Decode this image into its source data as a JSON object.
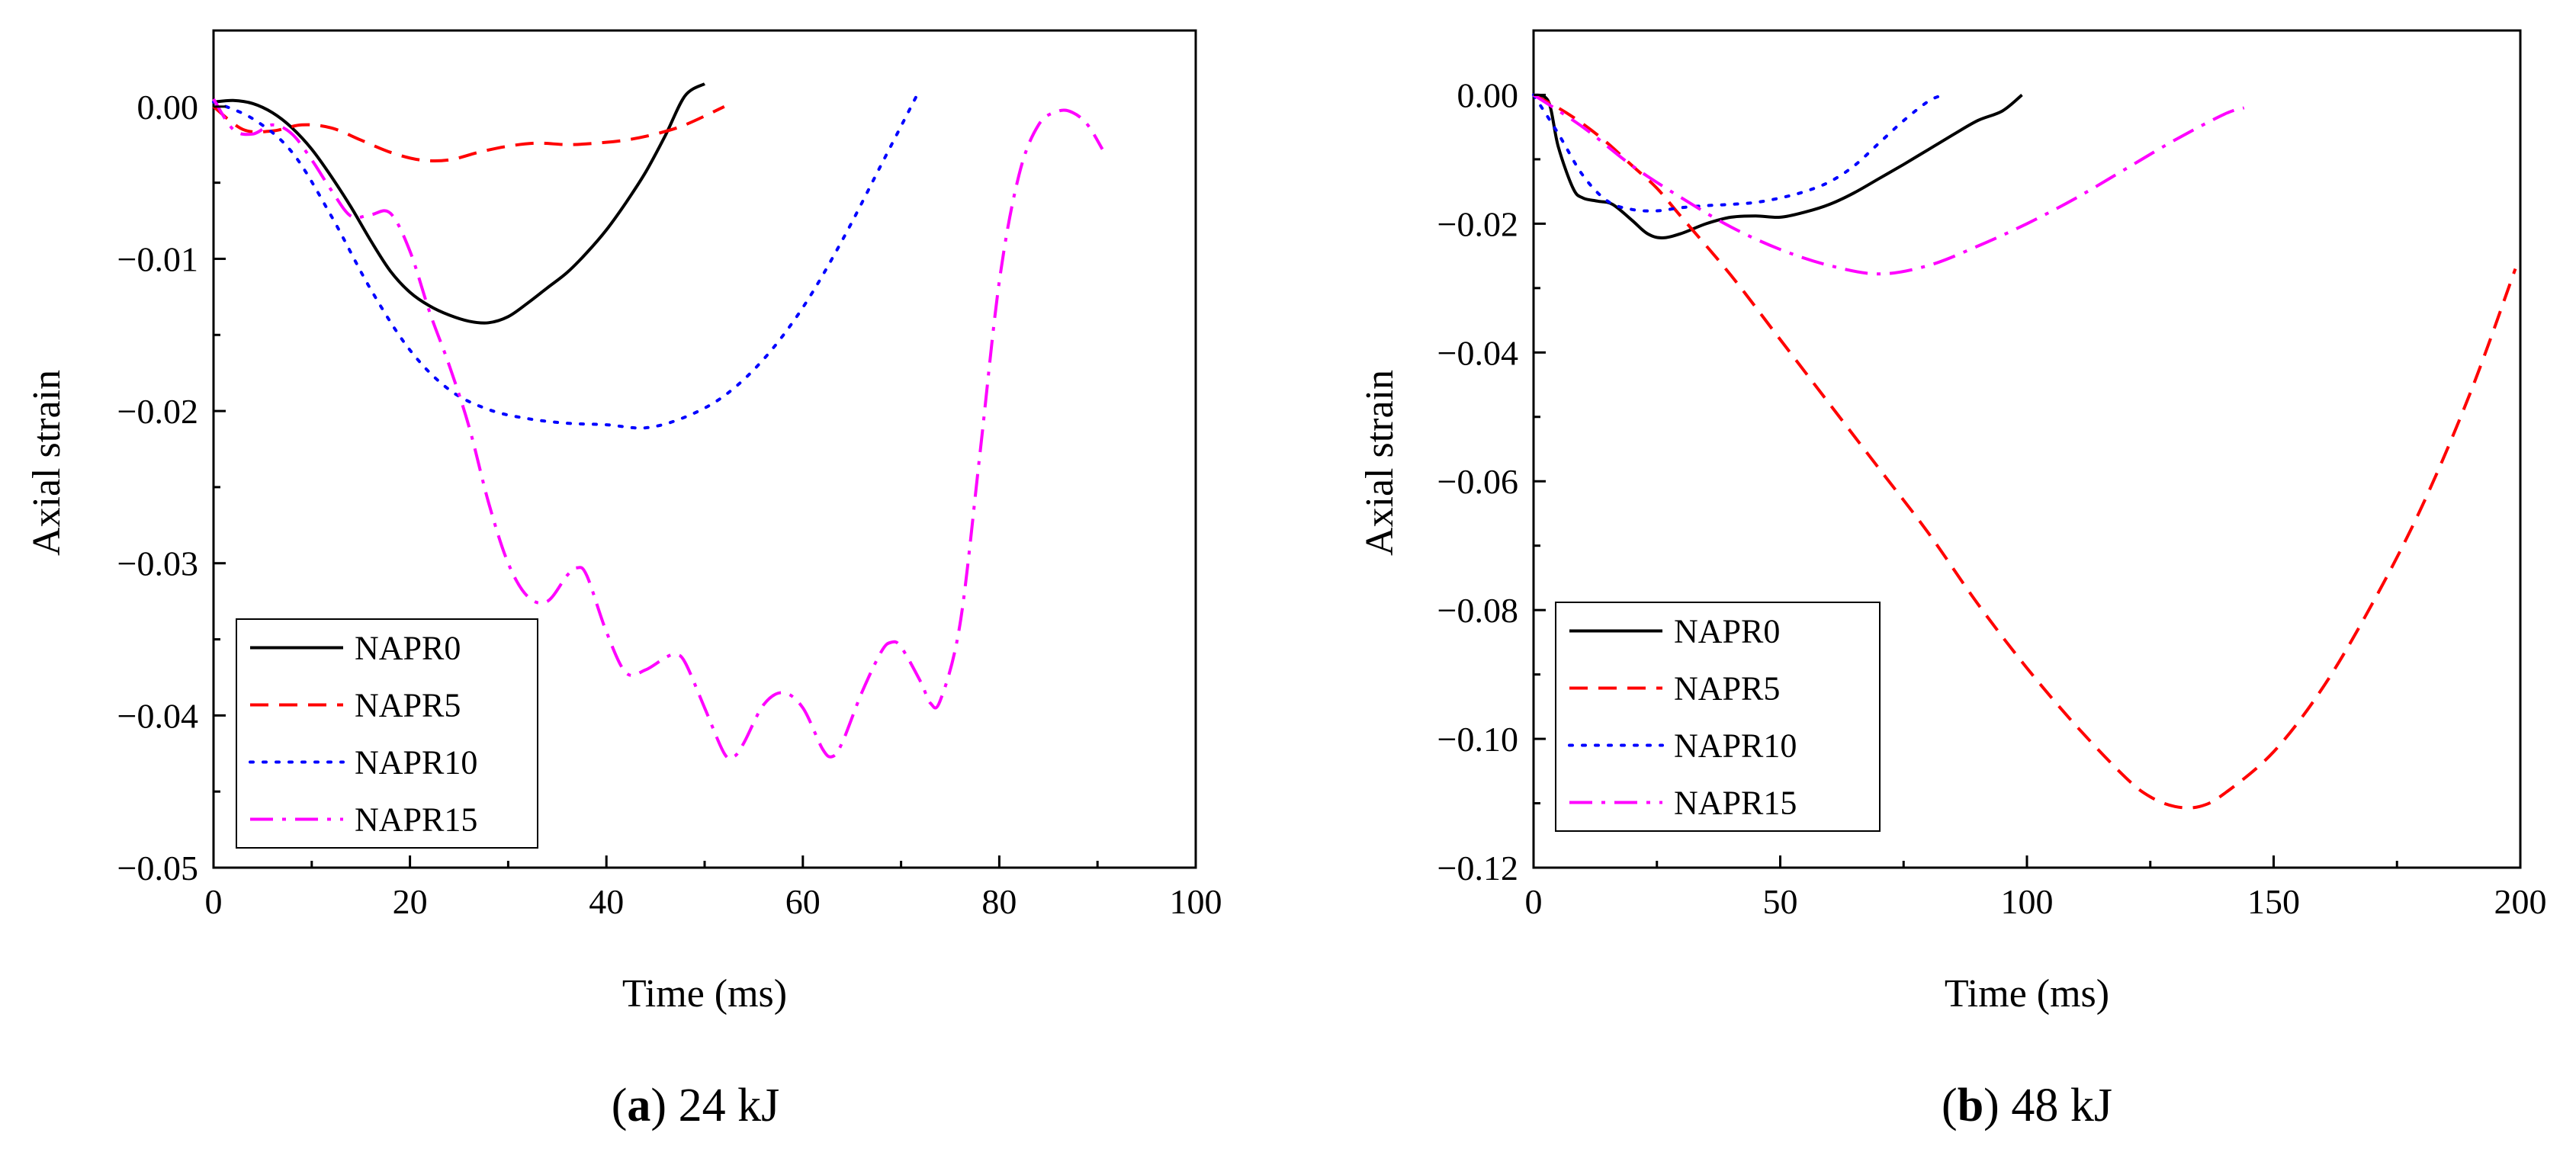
{
  "chart_data": [
    {
      "type": "line",
      "panel": "a",
      "caption": {
        "letter": "a",
        "text": "24 kJ"
      },
      "xlabel": "Time (ms)",
      "ylabel": "Axial strain",
      "xlim": [
        0,
        100
      ],
      "ylim": [
        -0.05,
        0.005
      ],
      "xticks": [
        0,
        20,
        40,
        60,
        80,
        100
      ],
      "xtick_labels": [
        "0",
        "20",
        "40",
        "60",
        "80",
        "100"
      ],
      "yticks": [
        0,
        -0.01,
        -0.02,
        -0.03,
        -0.04,
        -0.05
      ],
      "ytick_labels": [
        "0.00",
        "−0.01",
        "−0.02",
        "−0.03",
        "−0.04",
        "−0.05"
      ],
      "grid": false,
      "legend_position": "bottom-left",
      "series": [
        {
          "name": "NAPR0",
          "color": "#000000",
          "dash": "solid",
          "x": [
            0,
            2,
            4,
            6,
            8,
            10,
            12,
            14,
            16,
            18,
            20,
            22,
            24,
            26,
            28,
            30,
            32,
            34,
            36,
            38,
            40,
            42,
            44,
            46,
            48,
            50
          ],
          "y": [
            0.0003,
            0.0004,
            0.0002,
            -0.0004,
            -0.0014,
            -0.0028,
            -0.0046,
            -0.0066,
            -0.0088,
            -0.0108,
            -0.0122,
            -0.0131,
            -0.0137,
            -0.0141,
            -0.0142,
            -0.0138,
            -0.0129,
            -0.0119,
            -0.0109,
            -0.0096,
            -0.0081,
            -0.0063,
            -0.0043,
            -0.0019,
            0.0007,
            0.0015
          ]
        },
        {
          "name": "NAPR5",
          "color": "#ff0000",
          "dash": "dash",
          "x": [
            0,
            3,
            6,
            9,
            12,
            15,
            18,
            21,
            24,
            27,
            30,
            33,
            36,
            39,
            42,
            45,
            48,
            52
          ],
          "y": [
            0,
            -0.0015,
            -0.0016,
            -0.0012,
            -0.0014,
            -0.0022,
            -0.003,
            -0.0035,
            -0.0035,
            -0.003,
            -0.0026,
            -0.0024,
            -0.0025,
            -0.0024,
            -0.0022,
            -0.0018,
            -0.0012,
            0.0
          ]
        },
        {
          "name": "NAPR10",
          "color": "#0000ff",
          "dash": "dot",
          "x": [
            0,
            4,
            8,
            12,
            16,
            20,
            24,
            28,
            32,
            36,
            40,
            44,
            48,
            52,
            56,
            60,
            64,
            68,
            71.5
          ],
          "y": [
            0.0003,
            -0.0008,
            -0.003,
            -0.0072,
            -0.012,
            -0.016,
            -0.0186,
            -0.0199,
            -0.0205,
            -0.0208,
            -0.0209,
            -0.0211,
            -0.0204,
            -0.019,
            -0.0166,
            -0.0132,
            -0.0088,
            -0.0038,
            0.0006
          ]
        },
        {
          "name": "NAPR15",
          "color": "#ff00ff",
          "dash": "dashdot",
          "x": [
            0,
            2,
            4,
            6,
            8,
            10,
            12,
            14,
            16,
            18,
            20,
            22,
            24,
            26,
            28,
            30,
            32,
            34,
            36,
            37,
            38,
            40,
            42,
            44,
            46,
            47,
            48,
            50,
            52,
            53,
            54,
            56,
            58,
            60,
            62,
            63,
            64,
            66,
            68,
            69,
            70,
            72,
            73,
            74,
            76,
            78,
            80,
            82,
            84,
            86,
            87.5,
            89,
            90.5
          ],
          "y": [
            0.0005,
            -0.0015,
            -0.0018,
            -0.0012,
            -0.0018,
            -0.0035,
            -0.0055,
            -0.0072,
            -0.0071,
            -0.007,
            -0.0095,
            -0.0135,
            -0.017,
            -0.021,
            -0.026,
            -0.03,
            -0.0322,
            -0.0325,
            -0.0308,
            -0.0303,
            -0.0308,
            -0.0345,
            -0.0372,
            -0.037,
            -0.0362,
            -0.036,
            -0.0365,
            -0.0395,
            -0.0425,
            -0.0427,
            -0.0418,
            -0.0393,
            -0.0385,
            -0.0395,
            -0.0422,
            -0.0427,
            -0.0418,
            -0.0385,
            -0.0358,
            -0.0352,
            -0.0355,
            -0.0378,
            -0.0392,
            -0.039,
            -0.034,
            -0.023,
            -0.0115,
            -0.0045,
            -0.0012,
            -0.0003,
            -0.0004,
            -0.0012,
            -0.0028
          ]
        }
      ]
    },
    {
      "type": "line",
      "panel": "b",
      "caption": {
        "letter": "b",
        "text": "48 kJ"
      },
      "xlabel": "Time (ms)",
      "ylabel": "Axial strain",
      "xlim": [
        0,
        200
      ],
      "ylim": [
        -0.12,
        0.01
      ],
      "xticks": [
        0,
        50,
        100,
        150,
        200
      ],
      "xtick_labels": [
        "0",
        "50",
        "100",
        "150",
        "200"
      ],
      "yticks": [
        0,
        -0.02,
        -0.04,
        -0.06,
        -0.08,
        -0.1,
        -0.12
      ],
      "ytick_labels": [
        "0.00",
        "−0.02",
        "−0.04",
        "−0.06",
        "−0.08",
        "−0.10",
        "−0.12"
      ],
      "grid": false,
      "legend_position": "bottom-left",
      "series": [
        {
          "name": "NAPR0",
          "color": "#000000",
          "dash": "solid",
          "x": [
            0,
            3,
            5,
            8,
            10,
            13,
            16,
            20,
            23,
            26,
            30,
            35,
            40,
            45,
            50,
            55,
            60,
            65,
            70,
            75,
            80,
            85,
            90,
            95,
            99
          ],
          "y": [
            0.0,
            -0.001,
            -0.008,
            -0.0145,
            -0.016,
            -0.0165,
            -0.017,
            -0.0195,
            -0.0215,
            -0.0222,
            -0.0215,
            -0.02,
            -0.019,
            -0.0188,
            -0.019,
            -0.0182,
            -0.017,
            -0.0152,
            -0.013,
            -0.0108,
            -0.0085,
            -0.0062,
            -0.004,
            -0.0025,
            0.0
          ]
        },
        {
          "name": "NAPR5",
          "color": "#ff0000",
          "dash": "dash",
          "x": [
            0,
            5,
            10,
            15,
            20,
            25,
            30,
            40,
            50,
            60,
            70,
            80,
            90,
            100,
            110,
            120,
            125,
            130,
            135,
            140,
            150,
            160,
            170,
            180,
            190,
            199
          ],
          "y": [
            0.0,
            -0.002,
            -0.0045,
            -0.0075,
            -0.011,
            -0.0145,
            -0.019,
            -0.028,
            -0.038,
            -0.048,
            -0.058,
            -0.068,
            -0.079,
            -0.089,
            -0.098,
            -0.106,
            -0.109,
            -0.1105,
            -0.1105,
            -0.1085,
            -0.102,
            -0.092,
            -0.079,
            -0.064,
            -0.046,
            -0.027
          ]
        },
        {
          "name": "NAPR10",
          "color": "#0000ff",
          "dash": "dot",
          "x": [
            0,
            5,
            10,
            15,
            20,
            25,
            30,
            35,
            40,
            45,
            50,
            55,
            60,
            65,
            70,
            75,
            80,
            83
          ],
          "y": [
            0.0,
            -0.006,
            -0.0125,
            -0.0165,
            -0.0178,
            -0.018,
            -0.0175,
            -0.0172,
            -0.017,
            -0.0167,
            -0.016,
            -0.015,
            -0.0135,
            -0.011,
            -0.0075,
            -0.004,
            -0.001,
            0.0
          ]
        },
        {
          "name": "NAPR15",
          "color": "#ff00ff",
          "dash": "dashdot",
          "x": [
            0,
            10,
            20,
            30,
            40,
            50,
            60,
            70,
            80,
            90,
            100,
            110,
            120,
            130,
            140,
            144
          ],
          "y": [
            0.0,
            -0.005,
            -0.011,
            -0.016,
            -0.0205,
            -0.024,
            -0.0265,
            -0.0278,
            -0.0265,
            -0.0235,
            -0.02,
            -0.016,
            -0.0115,
            -0.007,
            -0.003,
            -0.002
          ]
        }
      ]
    }
  ]
}
